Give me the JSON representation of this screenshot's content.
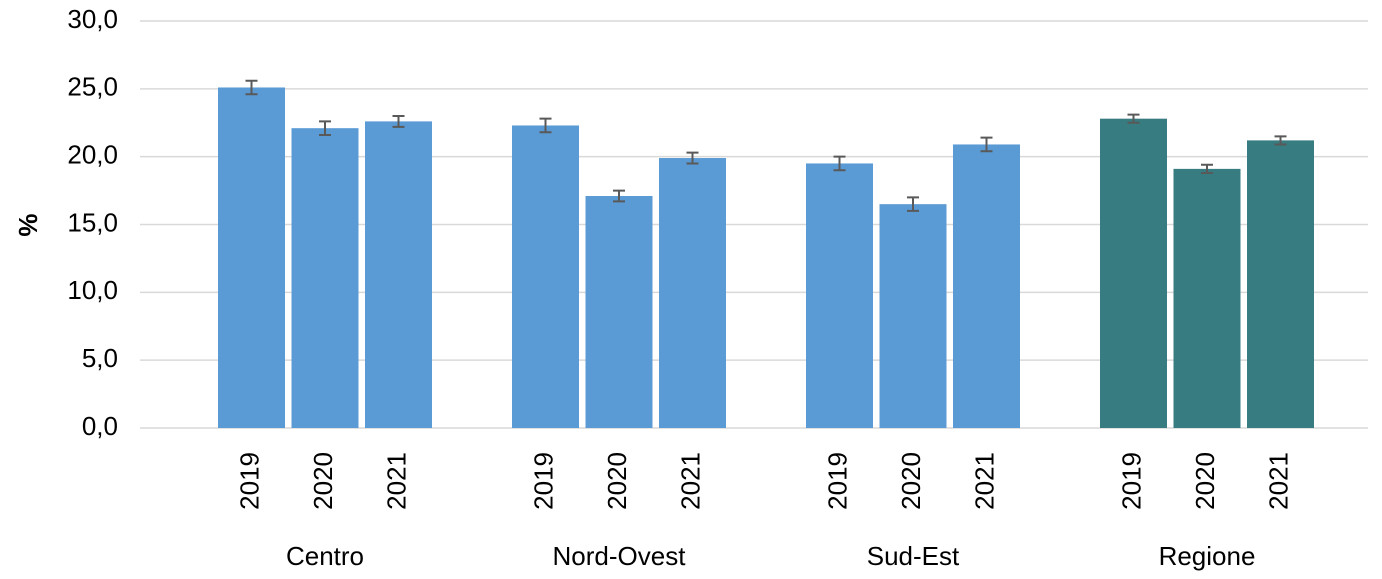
{
  "chart_data": {
    "type": "bar",
    "ylabel": "%",
    "ylim": [
      0,
      30
    ],
    "yticks": [
      {
        "value": 0,
        "label": "0,0"
      },
      {
        "value": 5,
        "label": "5,0"
      },
      {
        "value": 10,
        "label": "10,0"
      },
      {
        "value": 15,
        "label": "15,0"
      },
      {
        "value": 20,
        "label": "20,0"
      },
      {
        "value": 25,
        "label": "25,0"
      },
      {
        "value": 30,
        "label": "30,0"
      }
    ],
    "grid": true,
    "groups": [
      {
        "name": "Centro",
        "color": "#5b9bd5",
        "categories": [
          "2019",
          "2020",
          "2021"
        ],
        "values": [
          25.1,
          22.1,
          22.6
        ],
        "errors": [
          0.5,
          0.5,
          0.4
        ]
      },
      {
        "name": "Nord-Ovest",
        "color": "#5b9bd5",
        "categories": [
          "2019",
          "2020",
          "2021"
        ],
        "values": [
          22.3,
          17.1,
          19.9
        ],
        "errors": [
          0.5,
          0.4,
          0.4
        ]
      },
      {
        "name": "Sud-Est",
        "color": "#5b9bd5",
        "categories": [
          "2019",
          "2020",
          "2021"
        ],
        "values": [
          19.5,
          16.5,
          20.9
        ],
        "errors": [
          0.5,
          0.5,
          0.5
        ]
      },
      {
        "name": "Regione",
        "color": "#367c80",
        "categories": [
          "2019",
          "2020",
          "2021"
        ],
        "values": [
          22.8,
          19.1,
          21.2
        ],
        "errors": [
          0.3,
          0.3,
          0.3
        ]
      }
    ]
  }
}
